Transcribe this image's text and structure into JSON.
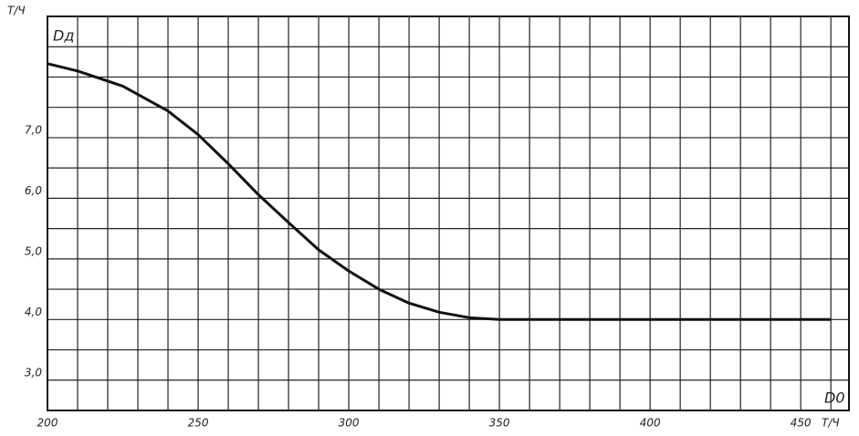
{
  "chart_data": {
    "type": "line",
    "y_unit": "Т/Ч",
    "y_label": "Dд",
    "x_label": "D0",
    "x_unit": "Т/Ч",
    "x": [
      200,
      210,
      225,
      240,
      250,
      260,
      270,
      280,
      290,
      300,
      310,
      320,
      330,
      340,
      350,
      400,
      460
    ],
    "series": [
      {
        "color": "#111111",
        "values": [
          8.22,
          8.1,
          7.85,
          7.44,
          7.05,
          6.57,
          6.06,
          5.6,
          5.15,
          4.8,
          4.5,
          4.27,
          4.12,
          4.03,
          4.0,
          4.0,
          4.0
        ]
      }
    ],
    "xlim": [
      200,
      466
    ],
    "ylim": [
      2.5,
      9.0
    ],
    "xticks": [
      200,
      250,
      300,
      350,
      400,
      450
    ],
    "yticks": [
      {
        "value": 3,
        "label": "3,0"
      },
      {
        "value": 4,
        "label": "4,0"
      },
      {
        "value": 5,
        "label": "5,0"
      },
      {
        "value": 6,
        "label": "6,0"
      },
      {
        "value": 7,
        "label": "7,0"
      }
    ],
    "xminorticks": [
      210,
      220,
      230,
      240,
      260,
      270,
      280,
      290,
      310,
      320,
      330,
      340,
      360,
      370,
      380,
      390,
      410,
      420,
      430,
      440,
      460
    ],
    "yminorticks": [
      3.5,
      4.5,
      5.5,
      6.5,
      7.5,
      8.0,
      8.5
    ],
    "grid": true
  }
}
